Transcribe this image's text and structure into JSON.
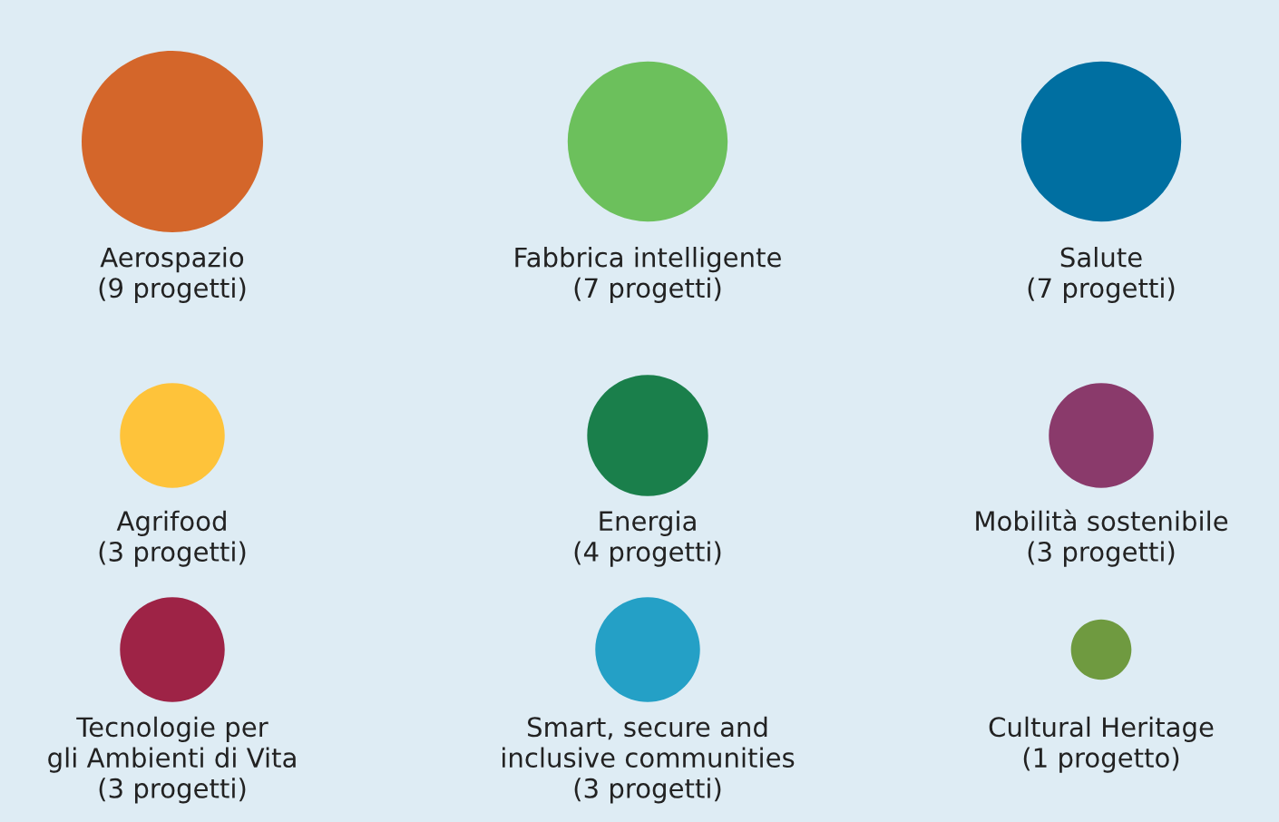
{
  "chart_data": {
    "type": "other",
    "categories": [
      "Aerospazio",
      "Fabbrica intelligente",
      "Salute",
      "Agrifood",
      "Energia",
      "Mobilità sostenibile",
      "Tecnologie per\ngli Ambienti di Vita",
      "Smart, secure and\ninclusive communities",
      "Cultural Heritage"
    ],
    "values": [
      9,
      7,
      7,
      3,
      4,
      3,
      3,
      3,
      1
    ],
    "value_labels": [
      "(9 progetti)",
      "(7 progetti)",
      "(7 progetti)",
      "(3 progetti)",
      "(4 progetti)",
      "(3 progetti)",
      "(3 progetti)",
      "(3 progetti)",
      "(1 progetto)"
    ],
    "colors": [
      "#d4662a",
      "#6cc05c",
      "#006fa1",
      "#fec33a",
      "#1a7f4b",
      "#8a3a6b",
      "#9e2346",
      "#24a0c6",
      "#6f9a40"
    ]
  }
}
